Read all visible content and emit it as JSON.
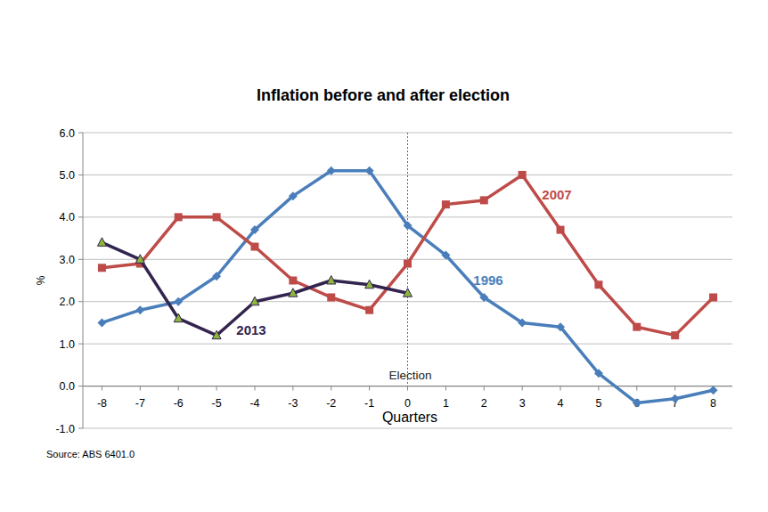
{
  "chart_data": {
    "type": "line",
    "title": "Inflation before and after election",
    "x_label": "Quarters",
    "y_label": "%",
    "annotations": [
      "Election"
    ],
    "source": "Source:  ABS 6401.0",
    "x": [
      -8,
      -7,
      -6,
      -5,
      -4,
      -3,
      -2,
      -1,
      0,
      1,
      2,
      3,
      4,
      5,
      6,
      7,
      8
    ],
    "series": [
      {
        "name": "1996",
        "color": "#4a7ebb",
        "marker": "diamond",
        "line_style": "solid",
        "values": [
          1.5,
          1.8,
          2.0,
          2.6,
          3.7,
          4.5,
          5.1,
          5.1,
          3.8,
          3.1,
          2.1,
          1.5,
          1.4,
          0.3,
          -0.4,
          -0.3,
          -0.1
        ]
      },
      {
        "name": "2007",
        "color": "#be4b48",
        "marker": "square",
        "line_style": "solid",
        "values": [
          2.8,
          2.9,
          4.0,
          4.0,
          3.3,
          2.5,
          2.1,
          1.8,
          2.9,
          4.3,
          4.4,
          5.0,
          3.7,
          2.4,
          1.4,
          1.2,
          2.1
        ]
      },
      {
        "name": "2013",
        "color": "#32244f",
        "marker": "triangle",
        "line_style": "solid",
        "values": [
          3.4,
          3.0,
          1.6,
          1.2,
          2.0,
          2.2,
          2.5,
          2.4,
          2.2,
          null,
          null,
          null,
          null,
          null,
          null,
          null,
          null
        ]
      }
    ],
    "xlim": [
      -8.5,
      8.5
    ],
    "xticks": [
      -8,
      -7,
      -6,
      -5,
      -4,
      -3,
      -2,
      -1,
      0,
      1,
      2,
      3,
      4,
      5,
      6,
      7,
      8
    ],
    "ylim": [
      -1,
      6
    ],
    "yticks": [
      {
        "value": -1,
        "label": "-1.0"
      },
      {
        "value": 0,
        "label": "0.0"
      },
      {
        "value": 1,
        "label": "1.0"
      },
      {
        "value": 2,
        "label": "2.0"
      },
      {
        "value": 3,
        "label": "3.0"
      },
      {
        "value": 4,
        "label": "4.0"
      },
      {
        "value": 5,
        "label": "5.0"
      },
      {
        "value": 6,
        "label": "6.0"
      }
    ],
    "grid": true
  }
}
